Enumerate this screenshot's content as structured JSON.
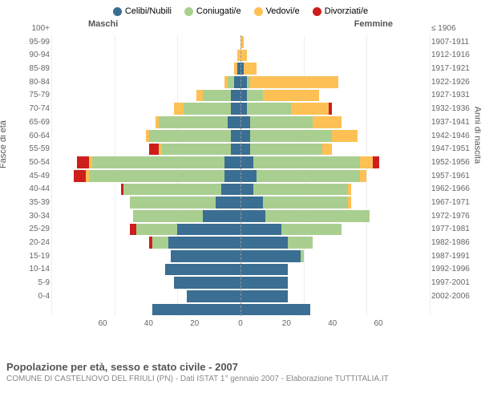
{
  "legend": [
    {
      "label": "Celibi/Nubili",
      "color": "#3b6e93"
    },
    {
      "label": "Coniugati/e",
      "color": "#a9cf90"
    },
    {
      "label": "Vedovi/e",
      "color": "#fcc054"
    },
    {
      "label": "Divorziati/e",
      "color": "#cd1e1c"
    }
  ],
  "header": {
    "male": "Maschi",
    "female": "Femmine"
  },
  "axis": {
    "left_title": "Fasce di età",
    "right_title": "Anni di nascita"
  },
  "xaxis": {
    "max": 60,
    "ticks": [
      60,
      40,
      20,
      0,
      20,
      40,
      60
    ]
  },
  "age_labels": [
    "100+",
    "95-99",
    "90-94",
    "85-89",
    "80-84",
    "75-79",
    "70-74",
    "65-69",
    "60-64",
    "55-59",
    "50-54",
    "45-49",
    "40-44",
    "35-39",
    "30-34",
    "25-29",
    "20-24",
    "15-19",
    "10-14",
    "5-9",
    "0-4"
  ],
  "year_labels": [
    "≤ 1906",
    "1907-1911",
    "1912-1916",
    "1917-1921",
    "1922-1926",
    "1927-1931",
    "1932-1936",
    "1937-1941",
    "1942-1946",
    "1947-1951",
    "1952-1956",
    "1957-1961",
    "1962-1966",
    "1967-1971",
    "1972-1976",
    "1977-1981",
    "1982-1986",
    "1987-1991",
    "1992-1996",
    "1997-2001",
    "2002-2006"
  ],
  "rows": [
    {
      "m": [
        0,
        0,
        0,
        0
      ],
      "f": [
        0,
        0,
        1,
        0
      ]
    },
    {
      "m": [
        0,
        0,
        1,
        0
      ],
      "f": [
        0,
        0,
        2,
        0
      ]
    },
    {
      "m": [
        1,
        0,
        1,
        0
      ],
      "f": [
        1,
        0,
        4,
        0
      ]
    },
    {
      "m": [
        2,
        2,
        1,
        0
      ],
      "f": [
        2,
        1,
        28,
        0
      ]
    },
    {
      "m": [
        3,
        9,
        2,
        0
      ],
      "f": [
        2,
        5,
        18,
        0
      ]
    },
    {
      "m": [
        3,
        15,
        3,
        0
      ],
      "f": [
        2,
        14,
        12,
        1
      ]
    },
    {
      "m": [
        4,
        22,
        1,
        0
      ],
      "f": [
        3,
        20,
        9,
        0
      ]
    },
    {
      "m": [
        3,
        26,
        1,
        0
      ],
      "f": [
        3,
        26,
        8,
        0
      ]
    },
    {
      "m": [
        3,
        22,
        1,
        3
      ],
      "f": [
        3,
        23,
        3,
        0
      ]
    },
    {
      "m": [
        5,
        42,
        1,
        4
      ],
      "f": [
        4,
        34,
        4,
        2
      ]
    },
    {
      "m": [
        5,
        43,
        1,
        4
      ],
      "f": [
        5,
        33,
        2,
        0
      ]
    },
    {
      "m": [
        6,
        31,
        0,
        1
      ],
      "f": [
        4,
        30,
        1,
        0
      ]
    },
    {
      "m": [
        8,
        27,
        0,
        0
      ],
      "f": [
        7,
        27,
        1,
        0
      ]
    },
    {
      "m": [
        12,
        22,
        0,
        0
      ],
      "f": [
        8,
        33,
        0,
        0
      ]
    },
    {
      "m": [
        20,
        13,
        0,
        2
      ],
      "f": [
        13,
        19,
        0,
        0
      ]
    },
    {
      "m": [
        23,
        5,
        0,
        1
      ],
      "f": [
        15,
        8,
        0,
        0
      ]
    },
    {
      "m": [
        22,
        0,
        0,
        0
      ],
      "f": [
        19,
        1,
        0,
        0
      ]
    },
    {
      "m": [
        24,
        0,
        0,
        0
      ],
      "f": [
        15,
        0,
        0,
        0
      ]
    },
    {
      "m": [
        21,
        0,
        0,
        0
      ],
      "f": [
        15,
        0,
        0,
        0
      ]
    },
    {
      "m": [
        17,
        0,
        0,
        0
      ],
      "f": [
        15,
        0,
        0,
        0
      ]
    },
    {
      "m": [
        28,
        0,
        0,
        0
      ],
      "f": [
        22,
        0,
        0,
        0
      ]
    }
  ],
  "footer": {
    "title": "Popolazione per età, sesso e stato civile - 2007",
    "subtitle": "COMUNE DI CASTELNOVO DEL FRIULI (PN) - Dati ISTAT 1° gennaio 2007 - Elaborazione TUTTITALIA.IT"
  }
}
